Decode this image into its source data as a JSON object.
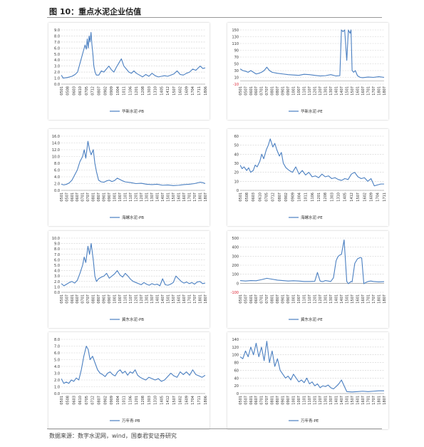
{
  "figure": {
    "title": "图 10：重点水泥企业估值",
    "source": "数据来源：数字水泥网，wind，国泰君安证券研究"
  },
  "chart_data": [
    {
      "type": "line",
      "legend": "华新水泥-PB",
      "color": "#4a7fc1",
      "ylim": [
        0,
        9
      ],
      "yticks": [
        "0.0",
        "1.0",
        "2.0",
        "3.0",
        "4.0",
        "5.0",
        "6.0",
        "7.0",
        "8.0",
        "9.0"
      ],
      "xticks": [
        "0501",
        "0508",
        "0603",
        "0610",
        "0705",
        "0712",
        "0807",
        "0902",
        "0909",
        "1004",
        "1011",
        "1106",
        "1201",
        "1208",
        "1303",
        "1310",
        "1405",
        "1412",
        "1507",
        "1602",
        "1609",
        "1704",
        "1711",
        "1806"
      ],
      "x": [
        0,
        0.3,
        1,
        1.7,
        2.2,
        2.6,
        3,
        3.4,
        3.8,
        4.0,
        4.15,
        4.3,
        4.45,
        4.6,
        4.75,
        4.9,
        5.05,
        5.2,
        5.4,
        5.6,
        6,
        6.4,
        6.8,
        7.2,
        7.6,
        8,
        8.4,
        8.8,
        9.2,
        9.6,
        10,
        10.4,
        10.8,
        11.2,
        11.6,
        12,
        12.5,
        13,
        13.5,
        14,
        14.5,
        15,
        15.5,
        16,
        16.5,
        17,
        17.5,
        18,
        18.5,
        19,
        19.5,
        20,
        20.5,
        21,
        21.5,
        21.8,
        22.2,
        22.6,
        23
      ],
      "y": [
        1.5,
        1.0,
        1.1,
        1.3,
        1.6,
        2.0,
        3.5,
        5.0,
        6.5,
        5.8,
        7.5,
        6.0,
        8.0,
        7.0,
        8.6,
        6.5,
        5.0,
        3.0,
        2.0,
        1.5,
        1.5,
        2.2,
        2.0,
        2.5,
        3.0,
        2.4,
        2.0,
        2.8,
        3.5,
        4.2,
        3.0,
        2.5,
        2.0,
        1.8,
        2.2,
        1.8,
        1.5,
        1.2,
        1.6,
        1.3,
        1.8,
        1.4,
        1.2,
        1.3,
        1.4,
        1.3,
        1.5,
        1.7,
        2.2,
        1.6,
        1.5,
        1.8,
        2.0,
        2.5,
        2.3,
        2.6,
        3.0,
        2.6,
        2.7
      ]
    },
    {
      "type": "line",
      "legend": "华新水泥-PE",
      "color": "#4a7fc1",
      "ylim": [
        -10,
        150
      ],
      "yticks": [
        "-10",
        "10",
        "30",
        "50",
        "70",
        "90",
        "110",
        "130",
        "150"
      ],
      "xticks": [
        "0501",
        "0507",
        "0601",
        "0607",
        "0701",
        "0707",
        "0801",
        "0807",
        "0901",
        "0907",
        "1001",
        "1007",
        "1101",
        "1107",
        "1201",
        "1207",
        "1301",
        "1307",
        "1401",
        "1407",
        "1501",
        "1507",
        "1601",
        "1607",
        "1701",
        "1707",
        "1801",
        "1807"
      ],
      "x": [
        0,
        0.5,
        1,
        1.5,
        2,
        2.5,
        3,
        3.5,
        4,
        4.5,
        5,
        5.5,
        6,
        7,
        8,
        9,
        10,
        11,
        12,
        13,
        14,
        15,
        16,
        17,
        18,
        18.7,
        19,
        19.3,
        19.6,
        20,
        20.3,
        20.6,
        20.8,
        21,
        21.3,
        21.6,
        22,
        22.5,
        23,
        24,
        25,
        26,
        27
      ],
      "y": [
        35,
        30,
        28,
        25,
        30,
        25,
        20,
        22,
        25,
        30,
        40,
        30,
        25,
        22,
        20,
        18,
        17,
        16,
        19,
        18,
        16,
        14,
        15,
        18,
        14,
        15,
        150,
        145,
        150,
        60,
        150,
        140,
        150,
        30,
        25,
        30,
        15,
        10,
        9,
        11,
        10,
        12,
        10
      ]
    },
    {
      "type": "line",
      "legend": "海螺水泥-PB",
      "color": "#4a7fc1",
      "ylim": [
        0,
        16
      ],
      "yticks": [
        "0.0",
        "2.0",
        "4.0",
        "6.0",
        "8.0",
        "10.0",
        "12.0",
        "14.0",
        "16.0"
      ],
      "xticks": [
        "0501",
        "0507",
        "0601",
        "0607",
        "0701",
        "0707",
        "0801",
        "0807",
        "0901",
        "0907",
        "1001",
        "1007",
        "1101",
        "1107",
        "1201",
        "1207",
        "1301",
        "1307",
        "1401",
        "1407",
        "1501",
        "1507",
        "1601",
        "1607",
        "1701",
        "1707",
        "1801",
        "1807"
      ],
      "x": [
        0,
        0.5,
        1,
        1.5,
        2,
        2.5,
        3,
        3.5,
        4,
        4.3,
        4.6,
        5,
        5.3,
        5.6,
        6,
        6.3,
        6.6,
        7,
        7.5,
        8,
        8.5,
        9,
        9.5,
        10,
        10.5,
        11,
        11.5,
        12,
        13,
        14,
        15,
        16,
        17,
        18,
        19,
        20,
        21,
        22,
        23,
        24,
        25,
        26,
        26.5,
        27
      ],
      "y": [
        1.8,
        1.6,
        1.8,
        2.2,
        3.0,
        4.5,
        6.0,
        8.5,
        10.0,
        12.0,
        9.5,
        14.5,
        12.0,
        10.5,
        12.0,
        8.0,
        5.5,
        3.0,
        2.5,
        2.4,
        2.8,
        3.0,
        2.6,
        2.9,
        3.6,
        3.2,
        2.8,
        2.5,
        2.3,
        2.0,
        2.1,
        1.8,
        1.7,
        1.8,
        1.5,
        1.6,
        1.4,
        1.5,
        1.7,
        1.8,
        2.0,
        2.4,
        2.3,
        2.0
      ]
    },
    {
      "type": "line",
      "legend": "海螺水泥-PE",
      "color": "#4a7fc1",
      "ylim": [
        0,
        60
      ],
      "yticks": [
        "0",
        "10",
        "20",
        "30",
        "40",
        "50",
        "60"
      ],
      "xticks": [
        "0501",
        "0508",
        "0603",
        "0610",
        "0705",
        "0712",
        "0807",
        "0902",
        "0909",
        "1004",
        "1011",
        "1106",
        "1201",
        "1208",
        "1303",
        "1310",
        "1405",
        "1412",
        "1507",
        "1602",
        "1609",
        "1704",
        "1711"
      ],
      "x": [
        0,
        0.3,
        0.6,
        1,
        1.3,
        1.6,
        2,
        2.3,
        2.6,
        3,
        3.3,
        3.6,
        4,
        4.3,
        4.6,
        5,
        5.3,
        5.6,
        6,
        6.3,
        6.6,
        7,
        7.5,
        8,
        8.5,
        9,
        9.5,
        10,
        10.5,
        11,
        11.5,
        12,
        12.5,
        13,
        13.5,
        14,
        14.5,
        15,
        15.5,
        16,
        16.5,
        17,
        17.5,
        18,
        18.5,
        19,
        19.5,
        20,
        20.5,
        21,
        21.5,
        22
      ],
      "y": [
        28,
        24,
        26,
        22,
        25,
        20,
        22,
        28,
        26,
        32,
        40,
        35,
        45,
        50,
        57,
        48,
        52,
        45,
        38,
        42,
        30,
        25,
        22,
        20,
        26,
        18,
        22,
        17,
        20,
        15,
        16,
        14,
        18,
        15,
        16,
        13,
        14,
        12,
        11,
        13,
        12,
        18,
        20,
        15,
        13,
        14,
        10,
        13,
        5,
        6,
        7,
        7
      ]
    },
    {
      "type": "line",
      "legend": "冀东水泥-PB",
      "color": "#4a7fc1",
      "ylim": [
        0,
        10
      ],
      "yticks": [
        "0.0",
        "1.0",
        "2.0",
        "3.0",
        "4.0",
        "5.0",
        "6.0",
        "7.0",
        "8.0",
        "9.0",
        "10.0"
      ],
      "xticks": [
        "0501",
        "0507",
        "0601",
        "0607",
        "0701",
        "0707",
        "0801",
        "0807",
        "0901",
        "0907",
        "1001",
        "1007",
        "1101",
        "1107",
        "1201",
        "1207",
        "1301",
        "1307",
        "1401",
        "1407",
        "1501",
        "1507",
        "1601",
        "1607",
        "1701",
        "1707",
        "1801",
        "1807"
      ],
      "x": [
        0,
        0.5,
        1,
        1.5,
        2,
        2.5,
        3,
        3.5,
        4,
        4.3,
        4.6,
        5,
        5.3,
        5.6,
        6,
        6.3,
        6.6,
        7,
        7.5,
        8,
        8.5,
        9,
        9.5,
        10,
        10.5,
        11,
        11.5,
        12,
        12.5,
        13,
        13.5,
        14,
        14.5,
        15,
        15.5,
        16,
        16.5,
        17,
        17.5,
        18,
        18.5,
        19,
        19.5,
        20,
        20.5,
        21,
        21.5,
        22,
        22.5,
        23,
        23.5,
        24,
        24.5,
        25,
        25.5,
        26,
        26.5,
        27
      ],
      "y": [
        1.6,
        1.2,
        1.5,
        1.8,
        2.0,
        1.7,
        2.2,
        3.5,
        5.0,
        6.5,
        5.5,
        8.5,
        7.0,
        9.0,
        6.0,
        3.0,
        2.0,
        2.5,
        2.8,
        3.0,
        3.5,
        2.6,
        3.0,
        3.4,
        4.0,
        3.2,
        2.8,
        3.5,
        3.0,
        2.4,
        2.0,
        1.8,
        1.6,
        1.4,
        1.8,
        1.5,
        1.3,
        1.6,
        1.4,
        1.5,
        1.2,
        2.5,
        1.4,
        1.3,
        1.5,
        1.8,
        3.0,
        2.5,
        2.0,
        1.7,
        1.9,
        1.6,
        1.8,
        1.5,
        1.9,
        2.0,
        1.6,
        1.7
      ]
    },
    {
      "type": "line",
      "legend": "冀东水泥-PE",
      "color": "#4a7fc1",
      "ylim": [
        -100,
        500
      ],
      "yticks": [
        "-100",
        "0",
        "100",
        "200",
        "300",
        "400",
        "500"
      ],
      "xticks": [
        "0501",
        "0507",
        "0601",
        "0607",
        "0701",
        "0707",
        "0801",
        "0807",
        "0901",
        "0907",
        "1001",
        "1007",
        "1101",
        "1107",
        "1201",
        "1207",
        "1301",
        "1307",
        "1401",
        "1407",
        "1501",
        "1507",
        "1601",
        "1607",
        "1701",
        "1707",
        "1801",
        "1807"
      ],
      "x": [
        0,
        1,
        2,
        3,
        4,
        5,
        6,
        7,
        8,
        9,
        10,
        11,
        12,
        13,
        14,
        14.5,
        15,
        15.3,
        15.6,
        16,
        16.5,
        17,
        17.5,
        18,
        18.3,
        18.6,
        19,
        19.5,
        20,
        20.3,
        20.6,
        20.8,
        21,
        21.5,
        22,
        22.5,
        22.8,
        23.2,
        23.6,
        24,
        24.5,
        25,
        26,
        27
      ],
      "y": [
        30,
        25,
        30,
        28,
        40,
        55,
        45,
        35,
        30,
        25,
        28,
        25,
        20,
        20,
        22,
        120,
        25,
        20,
        20,
        30,
        25,
        20,
        60,
        250,
        290,
        310,
        320,
        480,
        20,
        -5,
        10,
        20,
        15,
        220,
        270,
        285,
        280,
        -5,
        10,
        20,
        25,
        20,
        15,
        18
      ]
    },
    {
      "type": "line",
      "legend": "万年青-PB",
      "color": "#4a7fc1",
      "ylim": [
        0,
        8
      ],
      "yticks": [
        "0.0",
        "1.0",
        "2.0",
        "3.0",
        "4.0",
        "5.0",
        "6.0",
        "7.0",
        "8.0"
      ],
      "xticks": [
        "0501",
        "0508",
        "0603",
        "0610",
        "0705",
        "0712",
        "0807",
        "0902",
        "0909",
        "1004",
        "1011",
        "1106",
        "1201",
        "1208",
        "1303",
        "1310",
        "1405",
        "1412",
        "1507",
        "1602",
        "1609",
        "1704",
        "1711",
        "1806"
      ],
      "x": [
        0,
        0.4,
        0.8,
        1.2,
        1.6,
        2,
        2.4,
        2.8,
        3.2,
        3.6,
        4,
        4.3,
        4.6,
        5,
        5.4,
        5.8,
        6.2,
        6.6,
        7,
        7.4,
        7.8,
        8.2,
        8.6,
        9,
        9.4,
        9.8,
        10.2,
        10.6,
        11,
        11.4,
        11.8,
        12.2,
        12.6,
        13,
        13.5,
        14,
        14.5,
        15,
        15.5,
        16,
        16.5,
        17,
        17.5,
        18,
        18.5,
        19,
        19.5,
        20,
        20.5,
        21,
        21.5,
        22,
        22.5,
        23
      ],
      "y": [
        2.2,
        1.5,
        1.7,
        1.5,
        2.0,
        1.8,
        2.3,
        2.0,
        3.5,
        5.5,
        7.0,
        6.5,
        5.0,
        5.5,
        4.5,
        3.5,
        3.0,
        2.8,
        2.5,
        3.0,
        3.2,
        2.8,
        2.6,
        3.2,
        3.5,
        3.0,
        3.3,
        2.7,
        3.2,
        3.0,
        3.5,
        2.7,
        2.4,
        2.2,
        2.0,
        2.4,
        2.2,
        2.0,
        2.2,
        1.8,
        2.0,
        2.5,
        3.0,
        2.6,
        2.4,
        3.2,
        2.8,
        3.2,
        2.7,
        3.5,
        2.8,
        2.6,
        2.4,
        2.7
      ]
    },
    {
      "type": "line",
      "legend": "万年青-PE",
      "color": "#4a7fc1",
      "ylim": [
        0,
        140
      ],
      "yticks": [
        "0",
        "20",
        "40",
        "60",
        "80",
        "100",
        "120",
        "140"
      ],
      "xticks": [
        "0501",
        "0507",
        "0601",
        "0607",
        "0701",
        "0707",
        "0801",
        "0807",
        "0901",
        "0907",
        "1001",
        "1007",
        "1101",
        "1107",
        "1201",
        "1207",
        "1301",
        "1307",
        "1401",
        "1407",
        "1501",
        "1507",
        "1601",
        "1607",
        "1701",
        "1707",
        "1801",
        "1807"
      ],
      "x": [
        0,
        0.5,
        1,
        1.5,
        2,
        2.5,
        3,
        3.5,
        4,
        4.5,
        5,
        5.5,
        6,
        6.5,
        7,
        7.5,
        8,
        8.5,
        9,
        9.5,
        10,
        10.5,
        11,
        11.5,
        12,
        12.5,
        13,
        13.5,
        14,
        14.5,
        15,
        15.5,
        16,
        16.5,
        17,
        17.5,
        18,
        18.5,
        19,
        19.5,
        20,
        21,
        22,
        23,
        24,
        25,
        26,
        27
      ],
      "y": [
        95,
        90,
        110,
        95,
        120,
        100,
        130,
        95,
        120,
        85,
        135,
        80,
        110,
        70,
        90,
        60,
        50,
        40,
        45,
        35,
        50,
        40,
        30,
        35,
        28,
        40,
        25,
        30,
        20,
        25,
        15,
        20,
        18,
        22,
        15,
        12,
        18,
        25,
        35,
        20,
        5,
        4,
        5,
        6,
        5,
        6,
        7,
        7
      ]
    }
  ]
}
